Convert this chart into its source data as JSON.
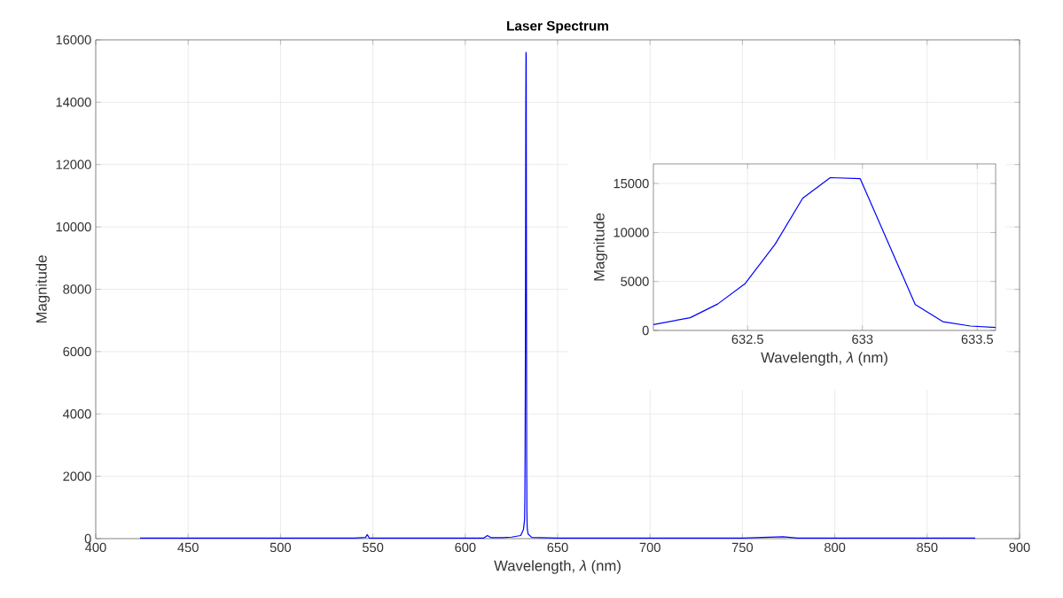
{
  "chart_data": [
    {
      "type": "line",
      "title": "**Laser Spectrum**",
      "xlabel": "Wavelength, *λ* (nm)",
      "ylabel": "Magnitude",
      "color": "#0000ff",
      "grid": true,
      "x": [
        424,
        440,
        460,
        480,
        500,
        520,
        540,
        546,
        547,
        548,
        560,
        580,
        600,
        610,
        612,
        614,
        620,
        625,
        630,
        631.5,
        632.09,
        632.25,
        632.37,
        632.49,
        632.62,
        632.74,
        632.86,
        632.99,
        633.23,
        633.35,
        633.47,
        633.59,
        634,
        636,
        650,
        680,
        700,
        720,
        750,
        772,
        780,
        800,
        830,
        850,
        870,
        876
      ],
      "values": [
        20,
        20,
        20,
        20,
        20,
        20,
        20,
        40,
        130,
        20,
        20,
        20,
        20,
        20,
        100,
        30,
        30,
        50,
        100,
        300,
        600,
        1300,
        2700,
        4800,
        8800,
        13500,
        15600,
        15500,
        2650,
        900,
        450,
        300,
        150,
        40,
        20,
        20,
        20,
        20,
        20,
        60,
        20,
        20,
        20,
        20,
        20,
        20
      ],
      "xlim": [
        400,
        900
      ],
      "ylim": [
        0,
        16000
      ],
      "xticks": [
        400,
        450,
        500,
        550,
        600,
        650,
        700,
        750,
        800,
        850,
        900
      ],
      "yticks": [
        0,
        2000,
        4000,
        6000,
        8000,
        10000,
        12000,
        14000,
        16000
      ]
    },
    {
      "type": "line",
      "xlabel": "Wavelength, *λ* (nm)",
      "ylabel": "Magnitude",
      "color": "#0000ff",
      "grid": true,
      "x": [
        632.09,
        632.25,
        632.37,
        632.49,
        632.62,
        632.74,
        632.86,
        632.99,
        633.23,
        633.35,
        633.47,
        633.58
      ],
      "values": [
        600,
        1300,
        2700,
        4800,
        8800,
        13500,
        15600,
        15500,
        2650,
        900,
        450,
        300
      ],
      "xlim": [
        632.09,
        633.58
      ],
      "ylim": [
        0,
        17000
      ],
      "xticks": [
        632.5,
        633,
        633.5
      ],
      "yticks": [
        0,
        5000,
        10000,
        15000
      ]
    }
  ]
}
